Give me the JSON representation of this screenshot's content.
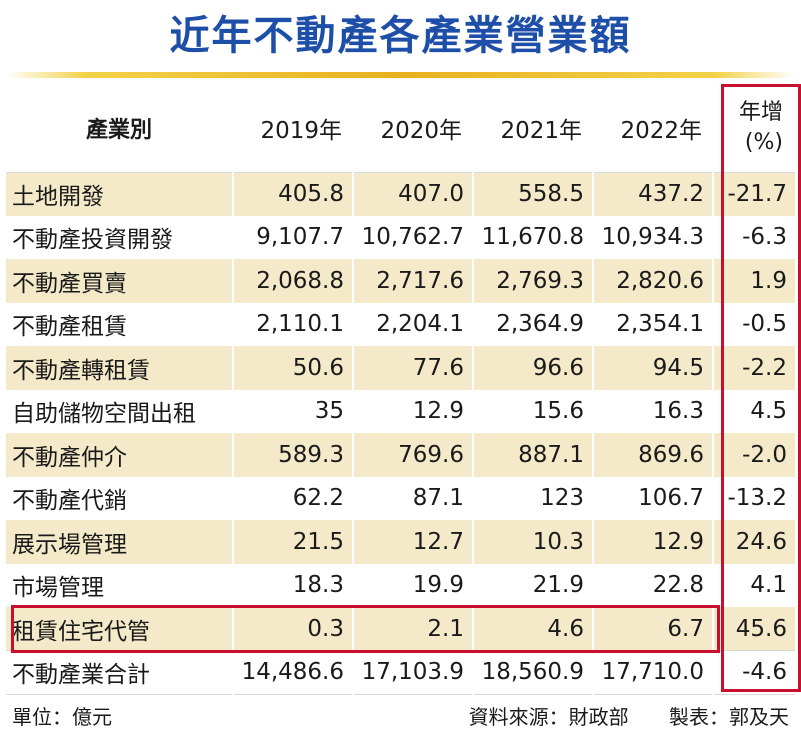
{
  "title": "近年不動產各產業營業額",
  "colors": {
    "title": "#1e4fa8",
    "row_shade": "#f4e9c8",
    "highlight": "#c8102e",
    "rule": "#e8b020"
  },
  "chart_data": {
    "type": "table",
    "title": "近年不動產各產業營業額",
    "columns": [
      "產業別",
      "2019年",
      "2020年",
      "2021年",
      "2022年",
      "年增(%)"
    ],
    "header": {
      "industry": "產業別",
      "years": [
        "2019年",
        "2020年",
        "2021年",
        "2022年"
      ],
      "growth_line1": "年增",
      "growth_line2": "(%)"
    },
    "rows": [
      {
        "name": "土地開發",
        "values": [
          "405.8",
          "407.0",
          "558.5",
          "437.2"
        ],
        "growth": "-21.7"
      },
      {
        "name": "不動產投資開發",
        "values": [
          "9,107.7",
          "10,762.7",
          "11,670.8",
          "10,934.3"
        ],
        "growth": "-6.3"
      },
      {
        "name": "不動產買賣",
        "values": [
          "2,068.8",
          "2,717.6",
          "2,769.3",
          "2,820.6"
        ],
        "growth": "1.9"
      },
      {
        "name": "不動產租賃",
        "values": [
          "2,110.1",
          "2,204.1",
          "2,364.9",
          "2,354.1"
        ],
        "growth": "-0.5"
      },
      {
        "name": "不動產轉租賃",
        "values": [
          "50.6",
          "77.6",
          "96.6",
          "94.5"
        ],
        "growth": "-2.2"
      },
      {
        "name": "自助儲物空間出租",
        "values": [
          "35",
          "12.9",
          "15.6",
          "16.3"
        ],
        "growth": "4.5"
      },
      {
        "name": "不動產仲介",
        "values": [
          "589.3",
          "769.6",
          "887.1",
          "869.6"
        ],
        "growth": "-2.0"
      },
      {
        "name": "不動產代銷",
        "values": [
          "62.2",
          "87.1",
          "123",
          "106.7"
        ],
        "growth": "-13.2"
      },
      {
        "name": "展示場管理",
        "values": [
          "21.5",
          "12.7",
          "10.3",
          "12.9"
        ],
        "growth": "24.6"
      },
      {
        "name": "市場管理",
        "values": [
          "18.3",
          "19.9",
          "21.9",
          "22.8"
        ],
        "growth": "4.1"
      },
      {
        "name": "租賃住宅代管",
        "values": [
          "0.3",
          "2.1",
          "4.6",
          "6.7"
        ],
        "growth": "45.6"
      },
      {
        "name": "不動產業合計",
        "values": [
          "14,486.6",
          "17,103.9",
          "18,560.9",
          "17,710.0"
        ],
        "growth": "-4.6"
      }
    ]
  },
  "footer": {
    "unit": "單位：億元",
    "source": "資料來源：財政部",
    "maker": "製表：郭及天"
  }
}
